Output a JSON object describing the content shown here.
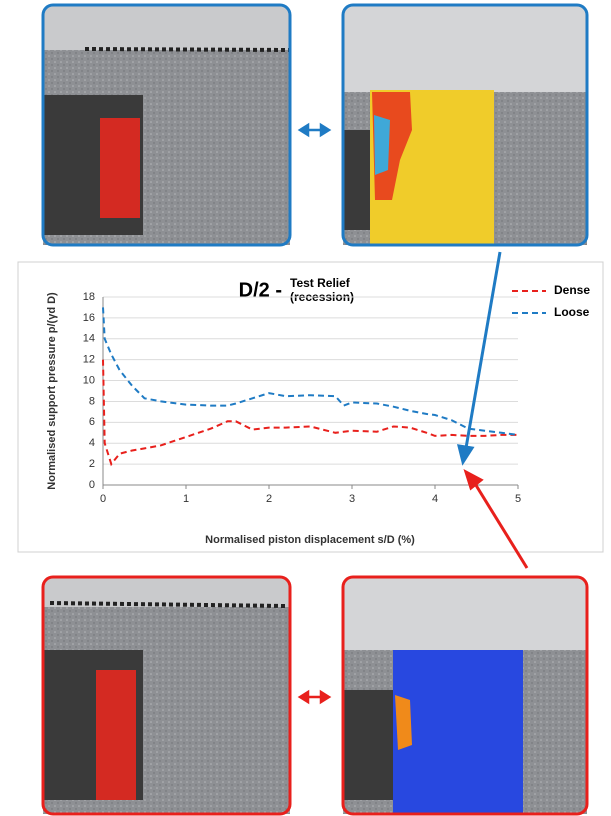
{
  "chart_data": {
    "type": "line",
    "title": "D/2 -",
    "subtitle": [
      "Test Relief",
      "(recession)"
    ],
    "x_label": "Normalised piston displacement s/D (%)",
    "y_label": "Normalised support pressure p/(γd D)",
    "xlim": [
      0,
      5
    ],
    "xticks": [
      0,
      1,
      2,
      3,
      4,
      5
    ],
    "ylim": [
      0,
      18
    ],
    "yticks": [
      0,
      2,
      4,
      6,
      8,
      10,
      12,
      14,
      16,
      18
    ],
    "grid": true,
    "legend": "upper right",
    "series": [
      {
        "name": "Dense",
        "color": "#e8201c",
        "x": [
          0,
          0.02,
          0.1,
          0.2,
          0.35,
          0.5,
          0.7,
          1,
          1.3,
          1.5,
          1.6,
          1.8,
          2,
          2.2,
          2.5,
          2.8,
          2.9,
          3,
          3.3,
          3.5,
          3.7,
          3.9,
          4,
          4.2,
          4.4,
          4.6,
          4.8,
          5
        ],
        "values": [
          12,
          4,
          2,
          3,
          3.3,
          3.5,
          3.8,
          4.6,
          5.4,
          6.1,
          6.1,
          5.3,
          5.5,
          5.5,
          5.6,
          5.0,
          5.1,
          5.2,
          5.1,
          5.6,
          5.5,
          5.0,
          4.7,
          4.8,
          4.7,
          4.7,
          4.8,
          4.8
        ]
      },
      {
        "name": "Loose",
        "color": "#1f7bc4",
        "x": [
          0,
          0.02,
          0.1,
          0.2,
          0.35,
          0.5,
          0.7,
          1,
          1.3,
          1.5,
          1.6,
          1.8,
          2,
          2.2,
          2.5,
          2.8,
          2.9,
          3,
          3.3,
          3.5,
          3.7,
          3.9,
          4,
          4.2,
          4.4,
          4.6,
          4.8,
          5
        ],
        "values": [
          17,
          14,
          12.5,
          11,
          9.5,
          8.3,
          8,
          7.7,
          7.6,
          7.6,
          7.8,
          8.3,
          8.8,
          8.5,
          8.6,
          8.5,
          7.6,
          7.9,
          7.8,
          7.5,
          7.1,
          6.8,
          6.7,
          6.2,
          5.4,
          5.2,
          5.0,
          4.8
        ]
      }
    ]
  }
}
